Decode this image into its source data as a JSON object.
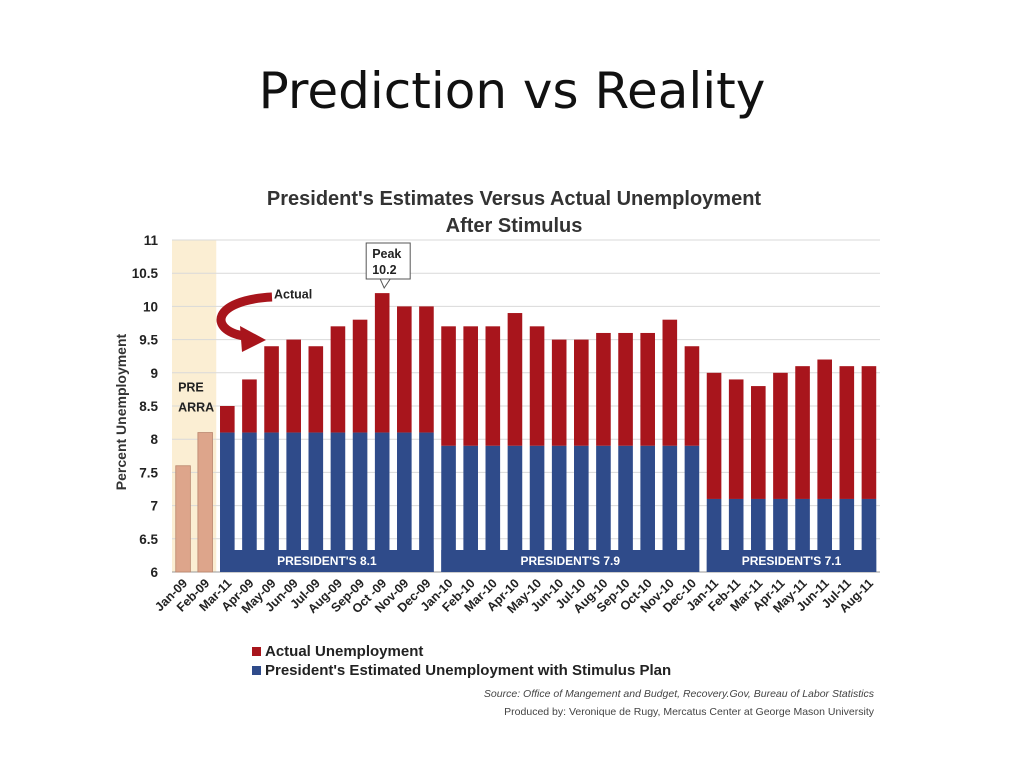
{
  "slide": {
    "title": "Prediction vs Reality"
  },
  "chart_data": {
    "type": "bar",
    "title": "President's Estimates Versus Actual Unemployment",
    "subtitle": "After Stimulus",
    "ylabel": "Percent Unemployment",
    "xlabel": "",
    "ylim": [
      6,
      11
    ],
    "yticks": [
      "6",
      "6.5",
      "7",
      "7.5",
      "8",
      "8.5",
      "9",
      "9.5",
      "10",
      "10.5",
      "11"
    ],
    "grid": true,
    "categories": [
      "Jan-09",
      "Feb-09",
      "Mar-11",
      "Apr-09",
      "May-09",
      "Jun-09",
      "Jul-09",
      "Aug-09",
      "Sep-09",
      "Oct -09",
      "Nov-09",
      "Dec-09",
      "Jan-10",
      "Feb-10",
      "Mar-10",
      "Apr-10",
      "May-10",
      "Jun-10",
      "Jul-10",
      "Aug-10",
      "Sep-10",
      "Oct-10",
      "Nov-10",
      "Dec-10",
      "Jan-11",
      "Feb-11",
      "Mar-11",
      "Apr-11",
      "May-11",
      "Jun-11",
      "Jul-11",
      "Aug-11"
    ],
    "pre_arra_values": [
      7.6,
      8.1
    ],
    "series": [
      {
        "name": "Actual Unemployment",
        "color": "#a8151c",
        "values": [
          null,
          null,
          8.5,
          8.9,
          9.4,
          9.5,
          9.4,
          9.7,
          9.8,
          10.2,
          10.0,
          10.0,
          9.7,
          9.7,
          9.7,
          9.9,
          9.7,
          9.5,
          9.5,
          9.6,
          9.6,
          9.6,
          9.8,
          9.4,
          9.0,
          8.9,
          8.8,
          9.0,
          9.1,
          9.2,
          9.1,
          9.1
        ]
      },
      {
        "name": "President's Estimated Unemployment with Stimulus Plan",
        "color": "#2f4b8a",
        "values": [
          null,
          null,
          8.1,
          8.1,
          8.1,
          8.1,
          8.1,
          8.1,
          8.1,
          8.1,
          8.1,
          8.1,
          7.9,
          7.9,
          7.9,
          7.9,
          7.9,
          7.9,
          7.9,
          7.9,
          7.9,
          7.9,
          7.9,
          7.9,
          7.1,
          7.1,
          7.1,
          7.1,
          7.1,
          7.1,
          7.1,
          7.1
        ]
      }
    ],
    "pre_arra_color": "#dda58b",
    "pre_arra_band_color": "#fbeed3",
    "bands": [
      {
        "label": "PRESIDENT'S",
        "value": "8.1"
      },
      {
        "label": "PRESIDENT'S",
        "value": "7.9"
      },
      {
        "label": "PRESIDENT'S",
        "value": "7.1"
      }
    ],
    "annotations": {
      "pre_line1": "PRE",
      "pre_line2": "ARRA",
      "actual": "Actual",
      "peak_line1": "Peak",
      "peak_line2": "10.2"
    },
    "legend_placement": "bottom-left",
    "source": "Source: Office of Mangement and Budget, Recovery.Gov, Bureau of Labor Statistics",
    "produced_by": "Produced by: Veronique de Rugy, Mercatus Center at George Mason University"
  }
}
